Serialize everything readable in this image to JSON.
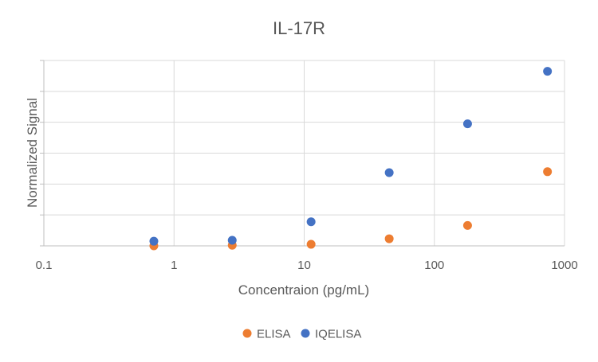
{
  "chart_data": {
    "type": "scatter",
    "title": "IL-17R",
    "xlabel": "Concentraion (pg/mL)",
    "ylabel": "Normalized Signal",
    "xscale": "log",
    "xlim": [
      0.1,
      1000
    ],
    "x_tick_labels": [
      "0.1",
      "1",
      "10",
      "100",
      "1000"
    ],
    "x_ticks": [
      0.1,
      1,
      10,
      100,
      1000
    ],
    "ylim": [
      0,
      6
    ],
    "y_ticks_labeled": false,
    "grid": true,
    "legend_position": "bottom",
    "series": [
      {
        "name": "ELISA",
        "color": "#ED7D31",
        "points": [
          {
            "x": 0.7,
            "y": 0.0
          },
          {
            "x": 2.8,
            "y": 0.02
          },
          {
            "x": 11.3,
            "y": 0.05
          },
          {
            "x": 45,
            "y": 0.23
          },
          {
            "x": 180,
            "y": 0.66
          },
          {
            "x": 740,
            "y": 2.4
          }
        ]
      },
      {
        "name": "IQELISA",
        "color": "#4472C4",
        "points": [
          {
            "x": 0.7,
            "y": 0.15
          },
          {
            "x": 2.8,
            "y": 0.18
          },
          {
            "x": 11.3,
            "y": 0.78
          },
          {
            "x": 45,
            "y": 2.37
          },
          {
            "x": 180,
            "y": 3.95
          },
          {
            "x": 740,
            "y": 5.65
          }
        ]
      }
    ]
  },
  "colors": {
    "text": "#595959",
    "gridline": "#D9D9D9",
    "axis": "#BFBFBF"
  }
}
